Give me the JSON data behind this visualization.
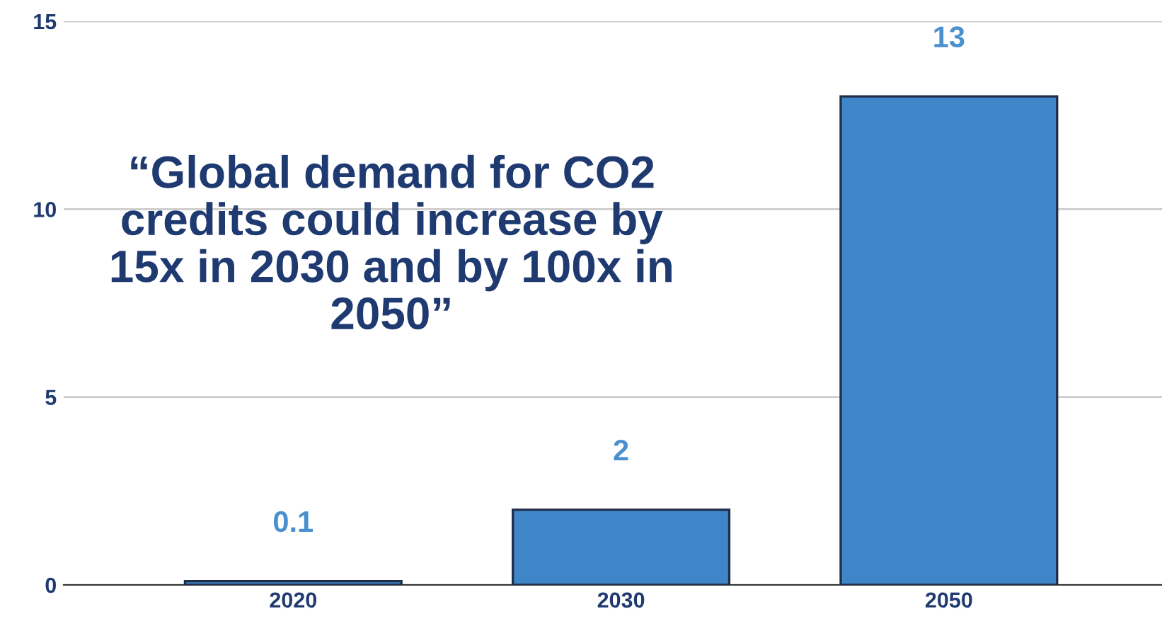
{
  "chart_data": {
    "type": "bar",
    "categories": [
      "2020",
      "2030",
      "2050"
    ],
    "values": [
      0.1,
      2,
      13
    ],
    "color": "#3f86c8",
    "ylim": [
      0,
      15
    ],
    "yticks": [
      0,
      5,
      10,
      15
    ],
    "grid": "y",
    "data_labels": true,
    "annotations": [
      "“Global demand for CO2\ncredits could increase by\n15x in 2030 and by 100x in\n2050”"
    ]
  }
}
